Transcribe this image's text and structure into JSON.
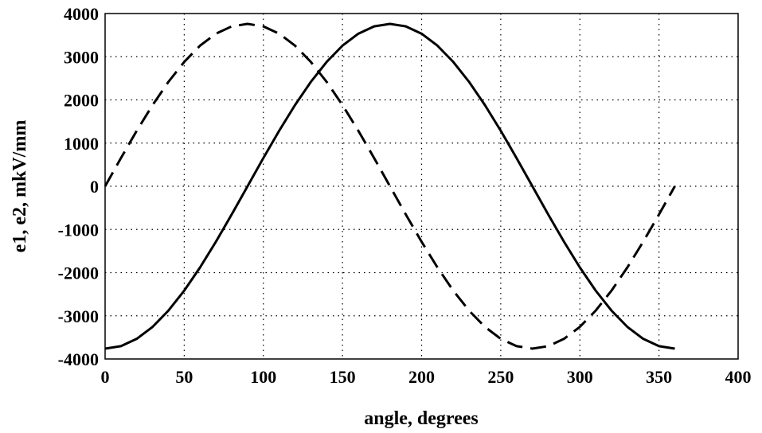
{
  "chart_data": {
    "type": "line",
    "xlabel": "angle, degrees",
    "ylabel": "e1, e2, mkV/mm",
    "xlim": [
      0,
      400
    ],
    "ylim": [
      -4000,
      4000
    ],
    "xticks": [
      "0",
      "50",
      "100",
      "150",
      "200",
      "250",
      "300",
      "350",
      "400"
    ],
    "yticks": [
      "4000",
      "3000",
      "2000",
      "1000",
      "0",
      "-1000",
      "-2000",
      "-3000",
      "-4000"
    ],
    "grid": true,
    "series": [
      {
        "style": "solid",
        "color": "#000000",
        "x": [
          0,
          10,
          20,
          30,
          40,
          50,
          60,
          70,
          80,
          90,
          100,
          110,
          120,
          130,
          140,
          150,
          160,
          170,
          180,
          190,
          200,
          210,
          220,
          230,
          240,
          250,
          260,
          270,
          280,
          290,
          300,
          310,
          320,
          330,
          340,
          350,
          360
        ],
        "y": [
          -3760,
          -3703,
          -3533,
          -3256,
          -2880,
          -2417,
          -1880,
          -1286,
          -653,
          0,
          653,
          1286,
          1880,
          2417,
          2880,
          3256,
          3533,
          3703,
          3760,
          3703,
          3533,
          3256,
          2880,
          2417,
          1880,
          1286,
          653,
          0,
          -653,
          -1286,
          -1880,
          -2417,
          -2880,
          -3256,
          -3533,
          -3703,
          -3760
        ]
      },
      {
        "style": "dashed",
        "color": "#000000",
        "x": [
          0,
          10,
          20,
          30,
          40,
          50,
          60,
          70,
          80,
          90,
          100,
          110,
          120,
          130,
          140,
          150,
          160,
          170,
          180,
          190,
          200,
          210,
          220,
          230,
          240,
          250,
          260,
          270,
          280,
          290,
          300,
          310,
          320,
          330,
          340,
          350,
          360
        ],
        "y": [
          0,
          653,
          1286,
          1880,
          2417,
          2880,
          3256,
          3533,
          3703,
          3760,
          3703,
          3533,
          3256,
          2880,
          2417,
          1880,
          1286,
          653,
          0,
          -653,
          -1286,
          -1880,
          -2417,
          -2880,
          -3256,
          -3533,
          -3703,
          -3760,
          -3703,
          -3533,
          -3256,
          -2880,
          -2417,
          -1880,
          -1286,
          -653,
          0
        ]
      }
    ]
  }
}
